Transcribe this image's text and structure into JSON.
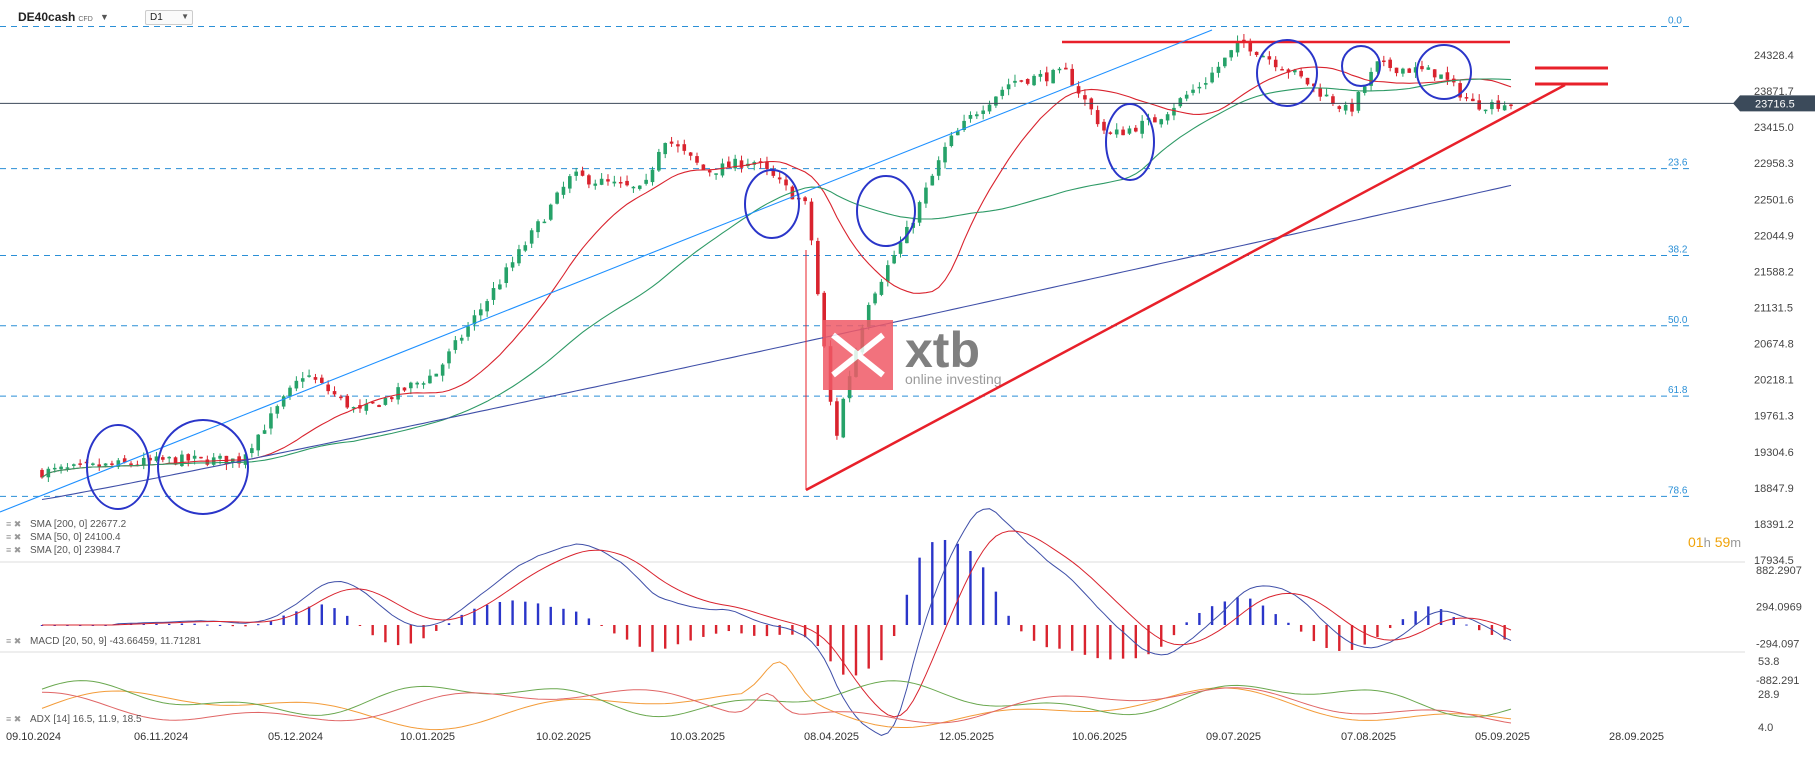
{
  "header": {
    "symbol": "DE40cash",
    "symbol_type": "CFD",
    "timeframe": "D1"
  },
  "timer": {
    "hours": "01",
    "h_unit": "h",
    "minutes": "59",
    "m_unit": "m"
  },
  "watermark": {
    "brand": "xtb",
    "tagline": "online investing"
  },
  "colors": {
    "bull": "#26a269",
    "bear": "#d9232e",
    "sma20": "#d9232e",
    "sma50": "#2e9a66",
    "sma200": "#3f4fa8",
    "trendline": "#1e90ff",
    "annotation_red": "#e8202a",
    "annotation_blue": "#2a35c9",
    "fib": "#2a8fd6"
  },
  "chart_data": {
    "type": "candlestick",
    "instrument": "DE40cash",
    "timeframe": "D1",
    "y_axis": {
      "range": [
        17934.5,
        24785
      ],
      "ticks": [
        24328.4,
        23871.7,
        23415.0,
        22958.3,
        22501.6,
        22044.9,
        21588.2,
        21131.5,
        20674.8,
        20218.1,
        19761.3,
        19304.6,
        18847.9,
        18391.2,
        17934.5
      ]
    },
    "current_price": 23716.5,
    "x_axis": {
      "labels": [
        "09.10.2024",
        "06.11.2024",
        "05.12.2024",
        "10.01.2025",
        "10.02.2025",
        "10.03.2025",
        "08.04.2025",
        "12.05.2025",
        "10.06.2025",
        "09.07.2025",
        "07.08.2025",
        "05.09.2025",
        "28.09.2025"
      ]
    },
    "fibonacci": [
      {
        "level": "0.0",
        "price": 24690
      },
      {
        "level": "23.6",
        "price": 22890
      },
      {
        "level": "38.2",
        "price": 21790
      },
      {
        "level": "50.0",
        "price": 20900
      },
      {
        "level": "61.8",
        "price": 20010
      },
      {
        "level": "78.6",
        "price": 18740
      }
    ],
    "close_path": [
      {
        "x": "09.10.2024",
        "y": 19050
      },
      {
        "x": "06.11.2024",
        "y": 19200
      },
      {
        "x": "21.11.2024",
        "y": 19200
      },
      {
        "x": "05.12.2024",
        "y": 20300
      },
      {
        "x": "20.12.2024",
        "y": 19800
      },
      {
        "x": "10.01.2025",
        "y": 20300
      },
      {
        "x": "25.01.2025",
        "y": 21500
      },
      {
        "x": "10.02.2025",
        "y": 22800
      },
      {
        "x": "25.02.2025",
        "y": 22600
      },
      {
        "x": "01.03.2025",
        "y": 23300
      },
      {
        "x": "10.03.2025",
        "y": 22850
      },
      {
        "x": "20.03.2025",
        "y": 23000
      },
      {
        "x": "01.04.2025",
        "y": 22400
      },
      {
        "x": "07.04.2025",
        "y": 19400
      },
      {
        "x": "08.04.2025",
        "y": 19800
      },
      {
        "x": "15.04.2025",
        "y": 21200
      },
      {
        "x": "25.04.2025",
        "y": 22100
      },
      {
        "x": "05.05.2025",
        "y": 23200
      },
      {
        "x": "12.05.2025",
        "y": 23600
      },
      {
        "x": "20.05.2025",
        "y": 24000
      },
      {
        "x": "01.06.2025",
        "y": 24100
      },
      {
        "x": "10.06.2025",
        "y": 23300
      },
      {
        "x": "20.06.2025",
        "y": 23500
      },
      {
        "x": "01.07.2025",
        "y": 24000
      },
      {
        "x": "09.07.2025",
        "y": 24500
      },
      {
        "x": "20.07.2025",
        "y": 24100
      },
      {
        "x": "01.08.2025",
        "y": 23600
      },
      {
        "x": "07.08.2025",
        "y": 24200
      },
      {
        "x": "20.08.2025",
        "y": 24100
      },
      {
        "x": "28.08.2025",
        "y": 23700
      },
      {
        "x": "05.09.2025",
        "y": 23716.5
      }
    ],
    "indicators": {
      "sma": [
        {
          "label": "SMA [200, 0]",
          "value": 22677.2
        },
        {
          "label": "SMA [50, 0]",
          "value": 24100.4
        },
        {
          "label": "SMA [20, 0]",
          "value": 23984.7
        }
      ],
      "macd": {
        "label": "MACD [20, 50, 9]",
        "values": [
          -43.66459,
          11.71281
        ],
        "ticks": [
          882.2907,
          294.0969,
          -294.097,
          -882.291
        ]
      },
      "adx": {
        "label": "ADX [14]",
        "values": [
          16.5,
          11.9,
          18.5
        ],
        "ticks": [
          53.8,
          28.9,
          4.0
        ]
      }
    }
  }
}
